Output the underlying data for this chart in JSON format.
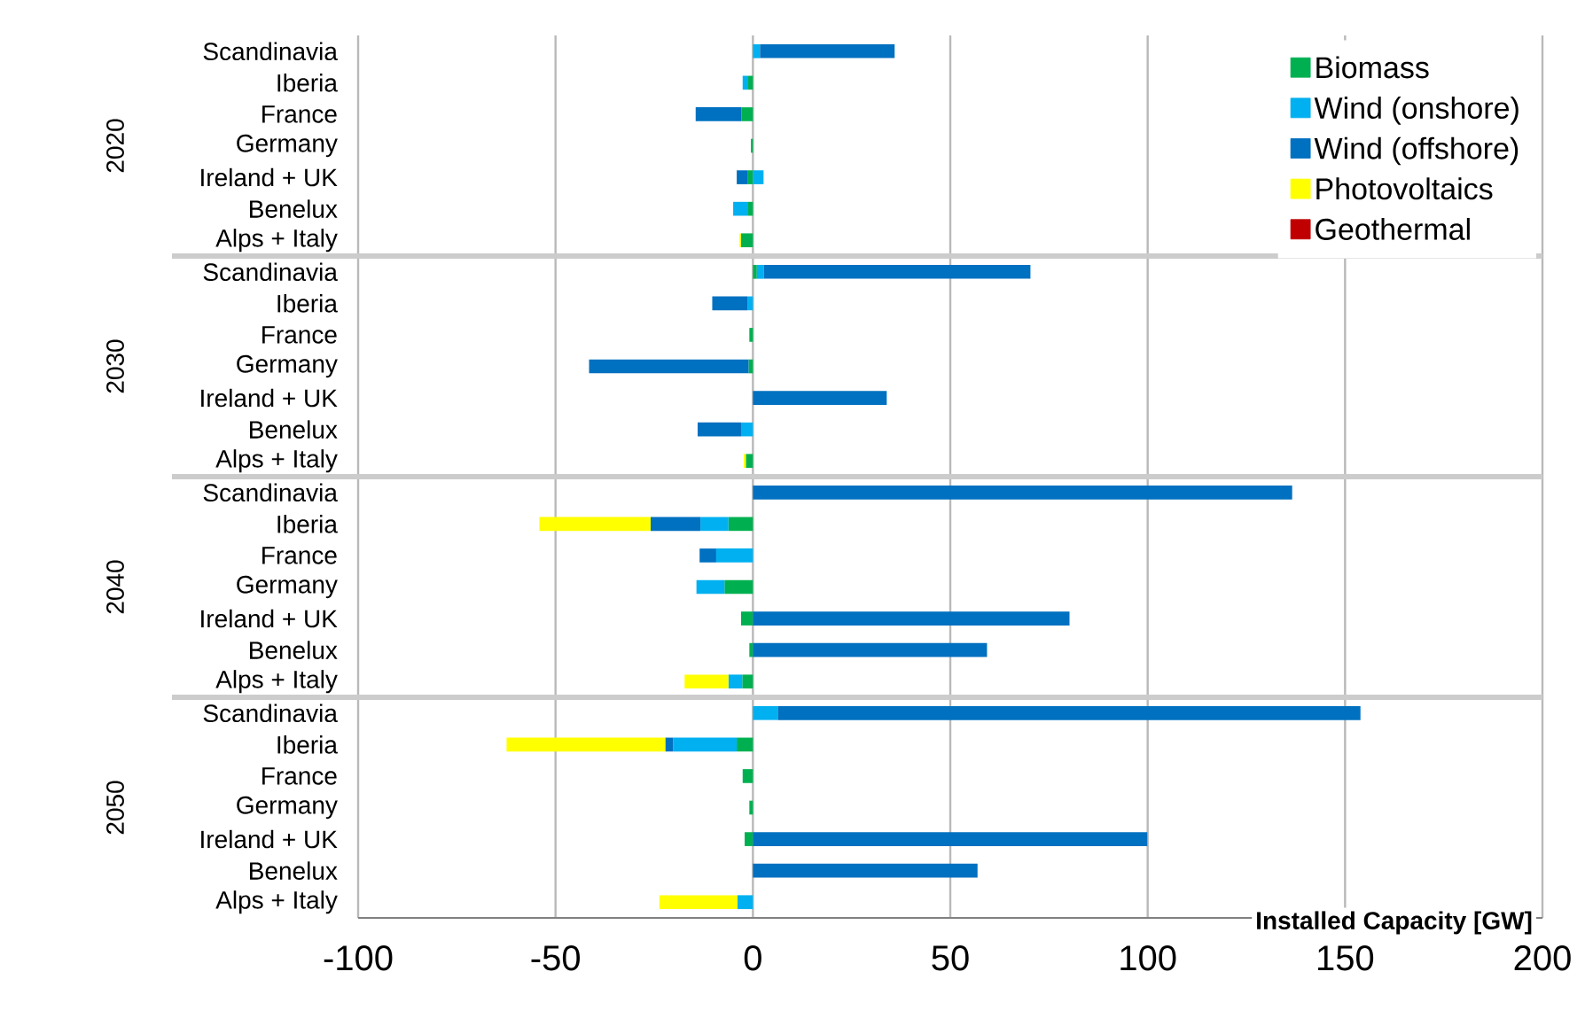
{
  "chart_data": {
    "type": "bar",
    "orientation": "horizontal",
    "stacked": true,
    "categories": [
      "Scandinavia",
      "Iberia",
      "France",
      "Germany",
      "Ireland + UK",
      "Benelux",
      "Alps + Italy",
      "Scandinavia",
      "Iberia",
      "France",
      "Germany",
      "Ireland + UK",
      "Benelux",
      "Alps + Italy",
      "Scandinavia",
      "Iberia",
      "France",
      "Germany",
      "Ireland + UK",
      "Benelux",
      "Alps + Italy",
      "Scandinavia",
      "Iberia",
      "France",
      "Germany",
      "Ireland + UK",
      "Benelux",
      "Alps + Italy"
    ],
    "annotations": [
      "2020",
      "2030",
      "2040",
      "2050"
    ],
    "series": [
      {
        "name": "Biomass",
        "color": "#00b050",
        "values": [
          null,
          -1.2,
          -2.9,
          -0.5,
          -1.4,
          -1.2,
          -3.0,
          1.0,
          null,
          -0.9,
          -1.1,
          null,
          null,
          -1.8,
          null,
          -6.2,
          null,
          -7.2,
          -3.0,
          -0.9,
          -2.7,
          null,
          -4.1,
          -2.6,
          -0.9,
          -2.1,
          null,
          null
        ]
      },
      {
        "name": "Wind (onshore)",
        "color": "#00b0f0",
        "values": [
          1.8,
          -1.4,
          null,
          null,
          2.7,
          -3.8,
          null,
          1.8,
          -1.4,
          null,
          null,
          null,
          -3.0,
          null,
          null,
          -7.1,
          -9.3,
          -7.1,
          null,
          null,
          -3.5,
          6.3,
          -16.1,
          null,
          null,
          null,
          null,
          -3.9
        ]
      },
      {
        "name": "Wind (offshore)",
        "color": "#0070c0",
        "values": [
          34.1,
          null,
          -11.6,
          null,
          -2.7,
          null,
          null,
          67.5,
          -8.9,
          null,
          -40.4,
          33.9,
          -11.0,
          null,
          136.6,
          -12.6,
          -4.2,
          null,
          80.2,
          59.3,
          null,
          147.6,
          -2.0,
          null,
          null,
          99.9,
          56.9,
          null
        ]
      },
      {
        "name": "Photovoltaics",
        "color": "#ffff00",
        "values": [
          null,
          null,
          null,
          null,
          null,
          null,
          -0.4,
          null,
          null,
          null,
          null,
          null,
          null,
          -0.5,
          null,
          -28.2,
          null,
          null,
          null,
          null,
          -11.1,
          null,
          -40.2,
          null,
          null,
          null,
          null,
          -19.8
        ]
      },
      {
        "name": "Geothermal",
        "color": "#c00000",
        "values": [
          null,
          null,
          null,
          null,
          null,
          null,
          null,
          null,
          null,
          null,
          null,
          null,
          null,
          null,
          null,
          null,
          null,
          null,
          null,
          null,
          null,
          null,
          null,
          null,
          null,
          null,
          null,
          null
        ]
      }
    ],
    "xlabel": "Installed Capacity [GW]",
    "xlim": [
      -100,
      200
    ],
    "xticks": [
      -100,
      -50,
      0,
      50,
      100,
      150,
      200
    ],
    "grid": "x",
    "legend": "top right"
  }
}
